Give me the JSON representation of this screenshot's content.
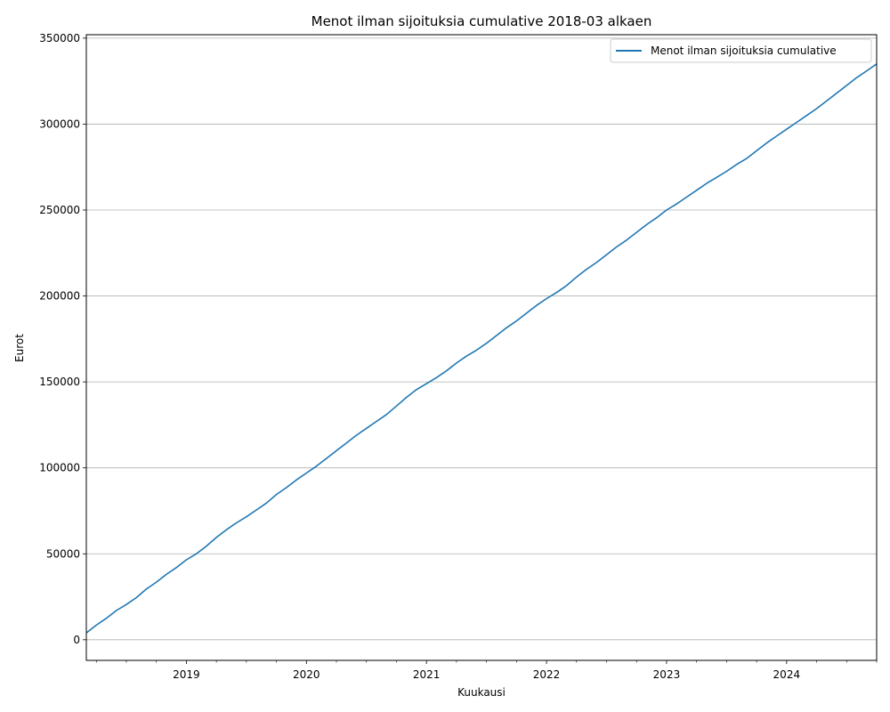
{
  "chart_data": {
    "type": "line",
    "title": "Menot ilman sijoituksia cumulative 2018-03 alkaen",
    "xlabel": "Kuukausi",
    "ylabel": "Eurot",
    "ylim": [
      -12000,
      352000
    ],
    "yticks": [
      0,
      50000,
      100000,
      150000,
      200000,
      250000,
      300000,
      350000
    ],
    "ytick_labels": [
      "0",
      "50000",
      "100000",
      "150000",
      "200000",
      "250000",
      "300000",
      "350000"
    ],
    "x_start": "2018-03",
    "x_end": "2024-10",
    "xtick_labels": [
      {
        "month": "2019-01",
        "label": "2019"
      },
      {
        "month": "2020-01",
        "label": "2020"
      },
      {
        "month": "2021-01",
        "label": "2021"
      },
      {
        "month": "2022-01",
        "label": "2022"
      },
      {
        "month": "2023-01",
        "label": "2023"
      },
      {
        "month": "2024-01",
        "label": "2024"
      }
    ],
    "grid": "y",
    "legend_position": "top-right",
    "series": [
      {
        "name": "Menot ilman sijoituksia cumulative",
        "color": "#1f77b4",
        "points": [
          [
            "2018-03",
            4000
          ],
          [
            "2018-04",
            8500
          ],
          [
            "2018-05",
            12500
          ],
          [
            "2018-06",
            17000
          ],
          [
            "2018-07",
            20500
          ],
          [
            "2018-08",
            24500
          ],
          [
            "2018-09",
            29500
          ],
          [
            "2018-10",
            33500
          ],
          [
            "2018-11",
            38000
          ],
          [
            "2018-12",
            42000
          ],
          [
            "2019-01",
            46500
          ],
          [
            "2019-02",
            50000
          ],
          [
            "2019-03",
            54500
          ],
          [
            "2019-04",
            59500
          ],
          [
            "2019-05",
            64000
          ],
          [
            "2019-06",
            68000
          ],
          [
            "2019-07",
            71500
          ],
          [
            "2019-08",
            75500
          ],
          [
            "2019-09",
            79500
          ],
          [
            "2019-10",
            84500
          ],
          [
            "2019-11",
            88500
          ],
          [
            "2019-12",
            93000
          ],
          [
            "2020-01",
            97000
          ],
          [
            "2020-02",
            101000
          ],
          [
            "2020-03",
            105500
          ],
          [
            "2020-04",
            110000
          ],
          [
            "2020-05",
            114500
          ],
          [
            "2020-06",
            119000
          ],
          [
            "2020-07",
            123000
          ],
          [
            "2020-08",
            127000
          ],
          [
            "2020-09",
            131000
          ],
          [
            "2020-10",
            136000
          ],
          [
            "2020-11",
            141000
          ],
          [
            "2020-12",
            145500
          ],
          [
            "2021-01",
            149000
          ],
          [
            "2021-02",
            152500
          ],
          [
            "2021-03",
            156500
          ],
          [
            "2021-04",
            161000
          ],
          [
            "2021-05",
            165000
          ],
          [
            "2021-06",
            168500
          ],
          [
            "2021-07",
            172500
          ],
          [
            "2021-08",
            177000
          ],
          [
            "2021-09",
            181500
          ],
          [
            "2021-10",
            185500
          ],
          [
            "2021-11",
            190000
          ],
          [
            "2021-12",
            194500
          ],
          [
            "2022-01",
            198500
          ],
          [
            "2022-02",
            202000
          ],
          [
            "2022-03",
            206000
          ],
          [
            "2022-04",
            211000
          ],
          [
            "2022-05",
            215500
          ],
          [
            "2022-06",
            219500
          ],
          [
            "2022-07",
            224000
          ],
          [
            "2022-08",
            228500
          ],
          [
            "2022-09",
            232500
          ],
          [
            "2022-10",
            237000
          ],
          [
            "2022-11",
            241500
          ],
          [
            "2022-12",
            245500
          ],
          [
            "2023-01",
            250000
          ],
          [
            "2023-02",
            253500
          ],
          [
            "2023-03",
            257500
          ],
          [
            "2023-04",
            261500
          ],
          [
            "2023-05",
            265500
          ],
          [
            "2023-06",
            269000
          ],
          [
            "2023-07",
            272500
          ],
          [
            "2023-08",
            276500
          ],
          [
            "2023-09",
            280000
          ],
          [
            "2023-10",
            284500
          ],
          [
            "2023-11",
            289000
          ],
          [
            "2023-12",
            293000
          ],
          [
            "2024-01",
            297000
          ],
          [
            "2024-02",
            301000
          ],
          [
            "2024-03",
            305000
          ],
          [
            "2024-04",
            309000
          ],
          [
            "2024-05",
            313500
          ],
          [
            "2024-06",
            318000
          ],
          [
            "2024-07",
            322500
          ],
          [
            "2024-08",
            327000
          ],
          [
            "2024-09",
            331000
          ],
          [
            "2024-10",
            335000
          ]
        ]
      }
    ]
  }
}
